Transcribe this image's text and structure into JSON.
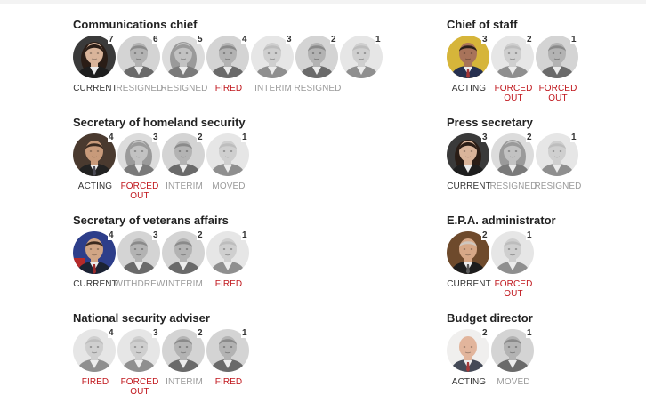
{
  "colors": {
    "red": "#c0171d",
    "grey": "#9b9b9b",
    "dark": "#333333"
  },
  "groups": [
    {
      "title": "Communications chief",
      "people": [
        {
          "num": "7",
          "status": "CURRENT",
          "tone": "dark",
          "photo": "color-hair"
        },
        {
          "num": "6",
          "status": "RESIGNED",
          "tone": "grey",
          "photo": "grey"
        },
        {
          "num": "5",
          "status": "RESIGNED",
          "tone": "grey",
          "photo": "grey-hair"
        },
        {
          "num": "4",
          "status": "FIRED",
          "tone": "red",
          "photo": "grey"
        },
        {
          "num": "3",
          "status": "INTERIM",
          "tone": "grey",
          "photo": "grey-light"
        },
        {
          "num": "2",
          "status": "RESIGNED",
          "tone": "grey",
          "photo": "grey"
        },
        {
          "num": "1",
          "status": "",
          "tone": "grey",
          "photo": "grey-light"
        }
      ]
    },
    {
      "title": "Secretary of homeland security",
      "people": [
        {
          "num": "4",
          "status": "ACTING",
          "tone": "dark",
          "photo": "color-dark"
        },
        {
          "num": "3",
          "status": "FORCED OUT",
          "tone": "red",
          "photo": "grey-hair"
        },
        {
          "num": "2",
          "status": "INTERIM",
          "tone": "grey",
          "photo": "grey"
        },
        {
          "num": "1",
          "status": "MOVED",
          "tone": "grey",
          "photo": "grey-light"
        }
      ]
    },
    {
      "title": "Secretary of veterans affairs",
      "people": [
        {
          "num": "4",
          "status": "CURRENT",
          "tone": "dark",
          "photo": "color-flag"
        },
        {
          "num": "3",
          "status": "WITHDREW",
          "tone": "grey",
          "photo": "grey"
        },
        {
          "num": "2",
          "status": "INTERIM",
          "tone": "grey",
          "photo": "grey"
        },
        {
          "num": "1",
          "status": "FIRED",
          "tone": "red",
          "photo": "grey-light"
        }
      ]
    },
    {
      "title": "National security adviser",
      "people": [
        {
          "num": "4",
          "status": "FIRED",
          "tone": "red",
          "photo": "grey-light"
        },
        {
          "num": "3",
          "status": "FORCED OUT",
          "tone": "red",
          "photo": "grey-light"
        },
        {
          "num": "2",
          "status": "INTERIM",
          "tone": "grey",
          "photo": "grey"
        },
        {
          "num": "1",
          "status": "FIRED",
          "tone": "red",
          "photo": "grey"
        }
      ]
    },
    {
      "title": "Chief of staff",
      "people": [
        {
          "num": "3",
          "status": "ACTING",
          "tone": "dark",
          "photo": "color-yellow"
        },
        {
          "num": "2",
          "status": "FORCED OUT",
          "tone": "red",
          "photo": "grey-light"
        },
        {
          "num": "1",
          "status": "FORCED OUT",
          "tone": "red",
          "photo": "grey"
        }
      ]
    },
    {
      "title": "Press secretary",
      "people": [
        {
          "num": "3",
          "status": "CURRENT",
          "tone": "dark",
          "photo": "color-hair"
        },
        {
          "num": "2",
          "status": "RESIGNED",
          "tone": "grey",
          "photo": "grey-hair"
        },
        {
          "num": "1",
          "status": "RESIGNED",
          "tone": "grey",
          "photo": "grey-light"
        }
      ]
    },
    {
      "title": "E.P.A. administrator",
      "people": [
        {
          "num": "2",
          "status": "CURRENT",
          "tone": "dark",
          "photo": "color-warm"
        },
        {
          "num": "1",
          "status": "FORCED OUT",
          "tone": "red",
          "photo": "grey-light"
        }
      ]
    },
    {
      "title": "Budget director",
      "people": [
        {
          "num": "2",
          "status": "ACTING",
          "tone": "dark",
          "photo": "color-bald"
        },
        {
          "num": "1",
          "status": "MOVED",
          "tone": "grey",
          "photo": "grey"
        }
      ]
    }
  ]
}
